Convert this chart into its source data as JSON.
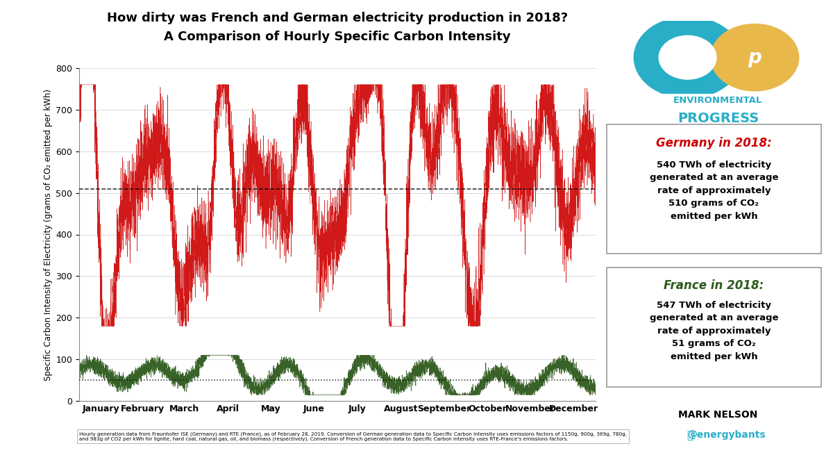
{
  "title_line1": "How dirty was French and German electricity production in 2018?",
  "title_line2": "A Comparison of Hourly Specific Carbon Intensity",
  "ylabel": "Specific Carbon Intensity of Electricity (grams of CO₂ emitted per kWh)",
  "xlabel_months": [
    "January",
    "February",
    "March",
    "April",
    "May",
    "June",
    "July",
    "August",
    "September",
    "October",
    "November",
    "December"
  ],
  "ylim": [
    0,
    800
  ],
  "yticks": [
    0,
    100,
    200,
    300,
    400,
    500,
    600,
    700,
    800
  ],
  "germany_avg": 510,
  "france_avg": 51,
  "germany_color": "#CC0000",
  "france_color": "#2d5a1b",
  "germany_avg_color": "#000000",
  "france_avg_color": "#000000",
  "ep_color_teal": "#29aec7",
  "ep_color_gold": "#e8b84b",
  "germany_box_title": "Germany in 2018:",
  "france_box_title": "France in 2018:",
  "footnote": "Hourly generation data from Fraunhofer ISE (Germany) and RTE (France), as of February 28, 2019. Conversion of German generation data to Specific Carbon Intensity uses emissions factors of 1150g, 900g, 369g, 780g,\nand 983g of CO2 per kWh for lignite, hard coal, natural gas, oil, and biomass (respectively). Conversion of French generation data to Specific Carbon Intensity uses RTE-France's emissions factors.",
  "background_color": "#ffffff",
  "seed": 42,
  "n_hours": 8760
}
